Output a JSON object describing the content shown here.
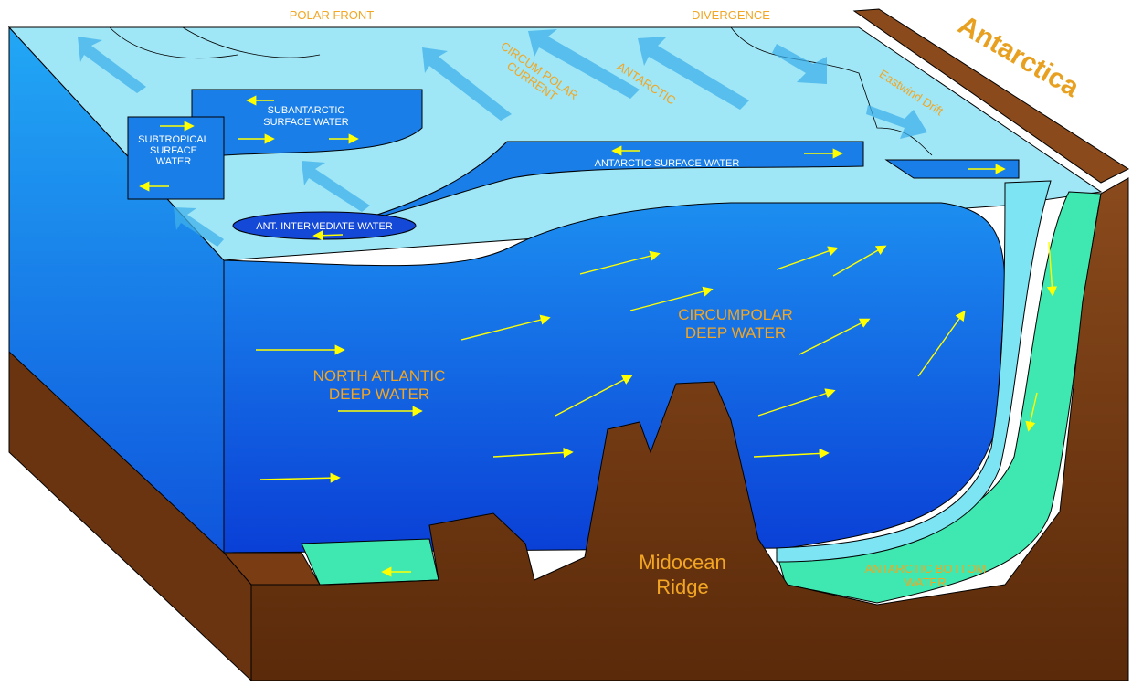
{
  "labels": {
    "polar_front": "POLAR FRONT",
    "divergence": "DIVERGENCE",
    "antarctica": "Antarctica",
    "circum_polar_current": [
      "CIRCUM POLAR",
      "CURRENT"
    ],
    "antarctic": "ANTARCTIC",
    "eastwind_drift": "Eastwind Drift",
    "subantarctic_surface_water": [
      "SUBANTARCTIC",
      "SURFACE WATER"
    ],
    "subtropical_surface_water": [
      "SUBTROPICAL",
      "SURFACE",
      "WATER"
    ],
    "antarctic_surface_water": "ANTARCTIC SURFACE WATER",
    "antarctic_intermediate_water": "ANT. INTERMEDIATE WATER",
    "circumpolar_deep_water": [
      "CIRCUMPOLAR",
      "DEEP WATER"
    ],
    "north_atlantic_deep_water": [
      "NORTH ATLANTIC",
      "DEEP WATER"
    ],
    "midocean_ridge": [
      "Midocean",
      "Ridge"
    ],
    "antarctic_bottom_water": [
      "ANTARCTIC BOTTOM",
      "WATER"
    ]
  }
}
